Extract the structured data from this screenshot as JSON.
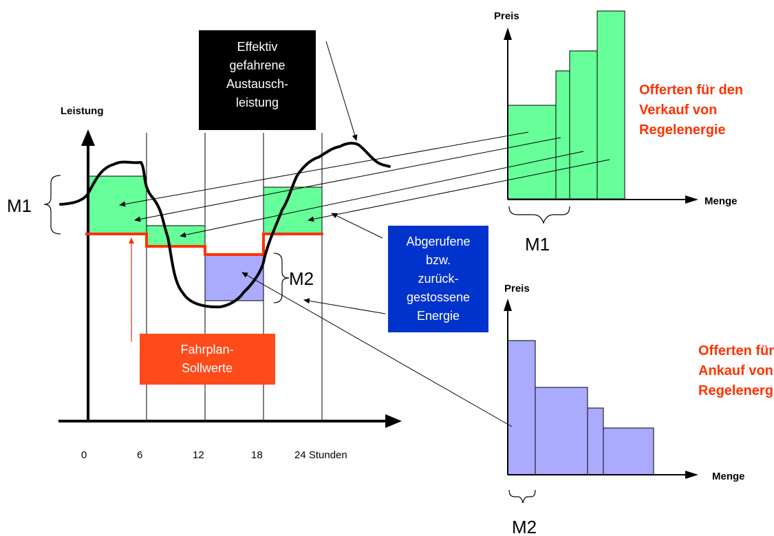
{
  "left_chart": {
    "y_axis_label": "Leistung",
    "x_ticks": [
      "0",
      "6",
      "12",
      "18",
      "24 Stunden"
    ],
    "label_m1": "M1",
    "label_m2": "M2"
  },
  "callouts": {
    "effective": [
      "Effektiv",
      "gefahrene",
      "Austausch-",
      "leistung"
    ],
    "called": [
      "Abgerufene",
      "bzw.",
      "zurück-",
      "gestossene",
      "Energie"
    ],
    "schedule": [
      "Fahrplan-",
      "Sollwerte"
    ]
  },
  "sell_chart": {
    "y_axis_label": "Preis",
    "x_axis_label": "Menge",
    "bracket_label": "M1",
    "title": [
      "Offerten für den",
      "Verkauf von",
      "Regelenergie"
    ]
  },
  "buy_chart": {
    "y_axis_label": "Preis",
    "x_axis_label": "Menge",
    "bracket_label": "M2",
    "title": [
      "Offerten für den",
      "Ankauf von",
      "Regelenergie"
    ]
  },
  "colors": {
    "green": "#66ff99",
    "lavender": "#aaaaff",
    "schedule_red": "#ff3300",
    "black_box": "#000000",
    "blue_box": "#0033cc",
    "orange_box": "#ff4a1a",
    "offer_text": "#ff3300"
  }
}
